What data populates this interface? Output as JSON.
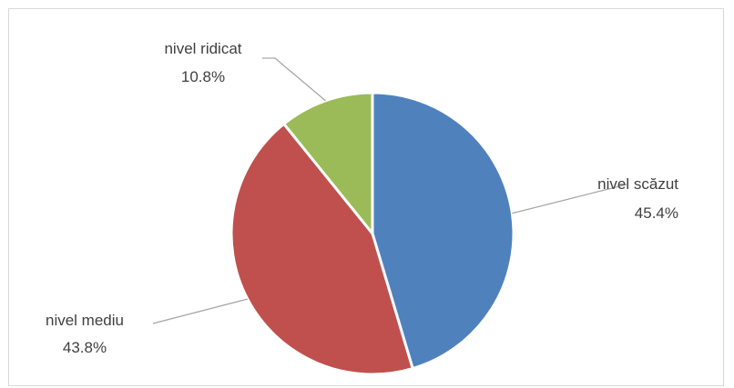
{
  "chart_data": {
    "type": "pie",
    "title": "",
    "slices": [
      {
        "label": "nivel scăzut",
        "value": 45.4,
        "display": "45.4%",
        "color": "#4f81bd"
      },
      {
        "label": "nivel mediu",
        "value": 43.8,
        "display": "43.8%",
        "color": "#c0504d"
      },
      {
        "label": "nivel ridicat",
        "value": 10.8,
        "display": "10.8%",
        "color": "#9bbb59"
      }
    ],
    "legend": "none",
    "data_labels": "outside with leader lines"
  }
}
